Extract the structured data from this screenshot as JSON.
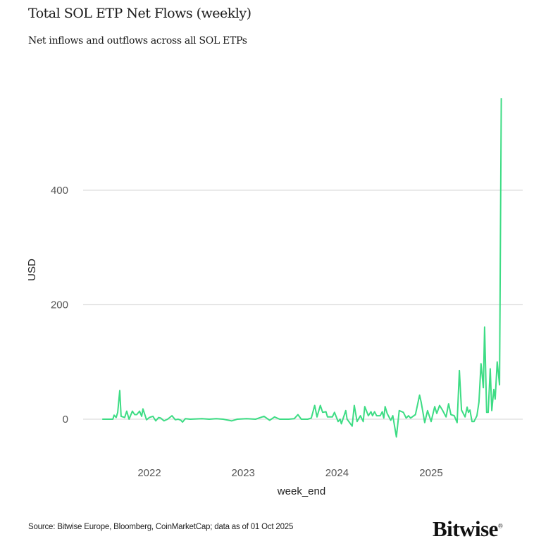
{
  "header": {
    "title": "Total SOL ETP Net Flows (weekly)",
    "subtitle": "Net inflows and outflows across all SOL ETPs"
  },
  "footer": {
    "source": "Source: Bitwise Europe, Bloomberg, CoinMarketCap; data as of 01 Oct 2025",
    "logo_text": "Bitwise"
  },
  "chart_data": {
    "type": "line",
    "title": "Total SOL ETP Net Flows (weekly)",
    "xlabel": "week_end",
    "ylabel": "USD",
    "x_ticks": [
      "2022",
      "2023",
      "2024",
      "2025"
    ],
    "y_ticks": [
      0,
      200,
      400
    ],
    "ylim": [
      -65,
      565
    ],
    "xlim": [
      "2021-05-10",
      "2025-11-25"
    ],
    "grid": "horizontal",
    "legend": "none",
    "line_color": "#3ddc84",
    "grid_color": "#dddddd",
    "series": [
      {
        "points": [
          [
            "2021-07-02",
            0
          ],
          [
            "2021-08-12",
            0
          ],
          [
            "2021-08-17",
            7
          ],
          [
            "2021-08-25",
            3
          ],
          [
            "2021-08-31",
            12
          ],
          [
            "2021-09-08",
            50
          ],
          [
            "2021-09-13",
            5
          ],
          [
            "2021-09-27",
            3
          ],
          [
            "2021-10-05",
            14
          ],
          [
            "2021-10-14",
            0
          ],
          [
            "2021-10-27",
            14
          ],
          [
            "2021-11-05",
            8
          ],
          [
            "2021-11-13",
            8
          ],
          [
            "2021-11-24",
            14
          ],
          [
            "2021-12-02",
            5
          ],
          [
            "2021-12-07",
            18
          ],
          [
            "2021-12-21",
            -1
          ],
          [
            "2022-01-01",
            3
          ],
          [
            "2022-01-15",
            5
          ],
          [
            "2022-01-26",
            -3
          ],
          [
            "2022-02-06",
            3
          ],
          [
            "2022-02-14",
            2
          ],
          [
            "2022-02-27",
            -3
          ],
          [
            "2022-03-13",
            0
          ],
          [
            "2022-03-30",
            6
          ],
          [
            "2022-04-12",
            -1
          ],
          [
            "2022-04-23",
            0
          ],
          [
            "2022-05-04",
            -2
          ],
          [
            "2022-05-10",
            -5
          ],
          [
            "2022-05-21",
            1
          ],
          [
            "2022-06-09",
            0
          ],
          [
            "2022-07-25",
            1
          ],
          [
            "2022-08-22",
            0
          ],
          [
            "2022-09-18",
            1
          ],
          [
            "2022-10-15",
            0
          ],
          [
            "2022-11-17",
            -3
          ],
          [
            "2022-12-09",
            0
          ],
          [
            "2023-01-14",
            1
          ],
          [
            "2023-02-18",
            0
          ],
          [
            "2023-03-23",
            5
          ],
          [
            "2023-04-14",
            -2
          ],
          [
            "2023-05-03",
            4
          ],
          [
            "2023-05-23",
            0
          ],
          [
            "2023-06-27",
            0
          ],
          [
            "2023-07-19",
            1
          ],
          [
            "2023-08-02",
            8
          ],
          [
            "2023-08-15",
            0
          ],
          [
            "2023-09-09",
            0
          ],
          [
            "2023-09-23",
            2
          ],
          [
            "2023-10-06",
            24
          ],
          [
            "2023-10-15",
            4
          ],
          [
            "2023-10-28",
            24
          ],
          [
            "2023-11-06",
            12
          ],
          [
            "2023-11-19",
            13
          ],
          [
            "2023-11-25",
            4
          ],
          [
            "2023-12-14",
            4
          ],
          [
            "2023-12-22",
            12
          ],
          [
            "2024-01-05",
            -4
          ],
          [
            "2024-01-13",
            0
          ],
          [
            "2024-01-18",
            -8
          ],
          [
            "2024-02-04",
            15
          ],
          [
            "2024-02-09",
            0
          ],
          [
            "2024-02-29",
            -12
          ],
          [
            "2024-03-08",
            24
          ],
          [
            "2024-03-19",
            -4
          ],
          [
            "2024-04-01",
            6
          ],
          [
            "2024-04-12",
            -4
          ],
          [
            "2024-04-18",
            22
          ],
          [
            "2024-05-02",
            6
          ],
          [
            "2024-05-12",
            13
          ],
          [
            "2024-05-18",
            6
          ],
          [
            "2024-05-26",
            13
          ],
          [
            "2024-06-03",
            6
          ],
          [
            "2024-06-17",
            6
          ],
          [
            "2024-06-25",
            13
          ],
          [
            "2024-07-01",
            2
          ],
          [
            "2024-07-06",
            22
          ],
          [
            "2024-07-14",
            10
          ],
          [
            "2024-07-28",
            -2
          ],
          [
            "2024-08-05",
            6
          ],
          [
            "2024-08-19",
            -31
          ],
          [
            "2024-08-30",
            15
          ],
          [
            "2024-09-15",
            12
          ],
          [
            "2024-09-26",
            2
          ],
          [
            "2024-10-05",
            6
          ],
          [
            "2024-10-13",
            2
          ],
          [
            "2024-11-01",
            8
          ],
          [
            "2024-11-17",
            42
          ],
          [
            "2024-11-23",
            30
          ],
          [
            "2024-12-07",
            -6
          ],
          [
            "2024-12-18",
            15
          ],
          [
            "2025-01-01",
            -4
          ],
          [
            "2025-01-15",
            22
          ],
          [
            "2025-01-23",
            10
          ],
          [
            "2025-02-03",
            24
          ],
          [
            "2025-02-14",
            16
          ],
          [
            "2025-02-28",
            4
          ],
          [
            "2025-03-10",
            27
          ],
          [
            "2025-03-19",
            8
          ],
          [
            "2025-04-01",
            6
          ],
          [
            "2025-04-12",
            -6
          ],
          [
            "2025-04-21",
            85
          ],
          [
            "2025-04-29",
            16
          ],
          [
            "2025-05-13",
            4
          ],
          [
            "2025-05-21",
            21
          ],
          [
            "2025-05-26",
            12
          ],
          [
            "2025-06-01",
            16
          ],
          [
            "2025-06-09",
            -4
          ],
          [
            "2025-06-17",
            -4
          ],
          [
            "2025-06-28",
            6
          ],
          [
            "2025-07-06",
            30
          ],
          [
            "2025-07-14",
            97
          ],
          [
            "2025-07-23",
            55
          ],
          [
            "2025-07-28",
            161
          ],
          [
            "2025-08-05",
            12
          ],
          [
            "2025-08-11",
            12
          ],
          [
            "2025-08-19",
            88
          ],
          [
            "2025-08-25",
            15
          ],
          [
            "2025-09-02",
            52
          ],
          [
            "2025-09-07",
            35
          ],
          [
            "2025-09-15",
            100
          ],
          [
            "2025-09-24",
            60
          ],
          [
            "2025-10-01",
            561
          ]
        ]
      }
    ]
  }
}
